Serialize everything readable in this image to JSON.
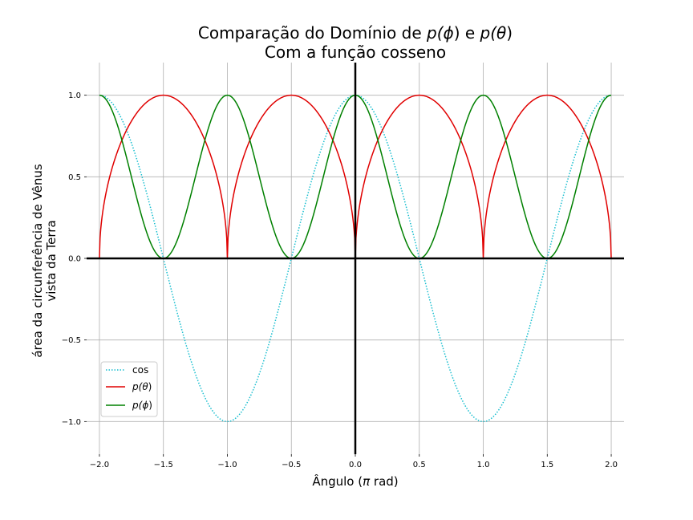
{
  "chart_data": {
    "type": "line",
    "title_line1_prefix": "Comparação do Domínio de ",
    "title_line1_p1": "p(",
    "title_line1_phi": "ϕ",
    "title_line1_close1": ")",
    "title_line1_mid": " e ",
    "title_line1_p2": "p(",
    "title_line1_theta": "θ",
    "title_line1_close2": ")",
    "title_line2": "Com a função cosseno",
    "xlabel_prefix": "Ângulo (",
    "xlabel_pi": "π",
    "xlabel_suffix": " rad)",
    "ylabel_line1": "área da circunferência de Vênus",
    "ylabel_line2": "vista da Terra",
    "xlim": [
      -2.1,
      2.1
    ],
    "ylim": [
      -1.2,
      1.2
    ],
    "x_ticks": [
      -2.0,
      -1.5,
      -1.0,
      -0.5,
      0.0,
      0.5,
      1.0,
      1.5,
      2.0
    ],
    "x_tick_labels": [
      "−2.0",
      "−1.5",
      "−1.0",
      "−0.5",
      "0.0",
      "0.5",
      "1.0",
      "1.5",
      "2.0"
    ],
    "y_ticks": [
      -1.0,
      -0.5,
      0.0,
      0.5,
      1.0
    ],
    "y_tick_labels": [
      "−1.0",
      "−0.5",
      "0.0",
      "0.5",
      "1.0"
    ],
    "grid": true,
    "legend_position": "lower-left",
    "x_range": [
      -2.0,
      2.0
    ],
    "series": [
      {
        "name": "cos",
        "formula": "cos(pi*x)",
        "color": "#17becf",
        "style": "dotted"
      },
      {
        "name": "p(θ)",
        "formula": "sqrt(|sin(pi*x)|)",
        "color": "#e00000",
        "style": "solid"
      },
      {
        "name": "p(ϕ)",
        "formula": "(1+cos(2*pi*x))/2",
        "color": "#008000",
        "style": "solid"
      }
    ],
    "legend": [
      {
        "label": "cos",
        "color": "#17becf",
        "style": "dotted"
      },
      {
        "label_prefix": "p(",
        "label_sym": "θ",
        "label_suffix": ")",
        "color": "#e00000",
        "style": "solid"
      },
      {
        "label_prefix": "p(",
        "label_sym": "ϕ",
        "label_suffix": ")",
        "color": "#008000",
        "style": "solid"
      }
    ]
  }
}
